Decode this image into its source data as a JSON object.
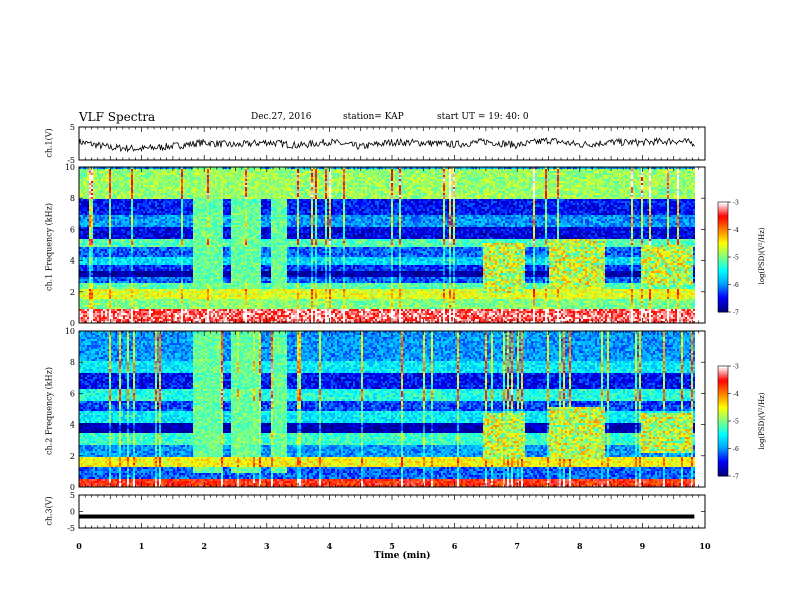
{
  "header": {
    "title": "VLF Spectra",
    "date": "Dec.27, 2016",
    "station": "station= KAP",
    "start": "start UT =   19: 40: 0"
  },
  "colors": {
    "colormap": [
      "#000080",
      "#0000ff",
      "#00a0ff",
      "#00ffff",
      "#80ff80",
      "#ffff00",
      "#ff8000",
      "#ff0000",
      "#ffffff"
    ],
    "trace": "#000000"
  },
  "chart_data": [
    {
      "type": "line",
      "panel": "ch1-waveform",
      "ylabel": "ch.1(V)",
      "ylim": [
        -5,
        5
      ],
      "yticks": [
        "5",
        "-5"
      ],
      "x": [
        0,
        0.5,
        1,
        1.5,
        2,
        2.5,
        3,
        3.5,
        4,
        4.5,
        5,
        5.5,
        6,
        6.5,
        7,
        7.5,
        8,
        8.5,
        9,
        9.5,
        9.83
      ],
      "values": [
        0.5,
        -1.2,
        -1.6,
        -0.8,
        0.3,
        -0.5,
        0.4,
        -0.6,
        0.5,
        -1.0,
        0.4,
        0.2,
        -0.3,
        0.6,
        -0.5,
        1.0,
        -0.4,
        0.4,
        0.3,
        0.8,
        0.2
      ]
    },
    {
      "type": "heatmap",
      "panel": "ch1-spectrogram",
      "ylabel": "ch.1 Frequency (kHz)",
      "ylim": [
        0,
        10
      ],
      "yticks": [
        "0",
        "2",
        "4",
        "6",
        "8",
        "10"
      ],
      "x_data_end": 9.83,
      "colorbar": {
        "label": "log(PSD)(V²/Hz)",
        "range": [
          -7,
          -3
        ],
        "ticks": [
          "-3",
          "-4",
          "-5",
          "-6",
          "-7"
        ]
      },
      "bands_khz": [
        {
          "from": 0,
          "to": 1.0,
          "level": -3.3
        },
        {
          "from": 1.0,
          "to": 1.6,
          "level": -5.0
        },
        {
          "from": 1.6,
          "to": 2.2,
          "level": -4.6
        },
        {
          "from": 2.2,
          "to": 2.6,
          "level": -5.2
        },
        {
          "from": 2.6,
          "to": 3.0,
          "level": -6.2
        },
        {
          "from": 3.0,
          "to": 3.4,
          "level": -6.9
        },
        {
          "from": 3.4,
          "to": 3.8,
          "level": -6.4
        },
        {
          "from": 3.8,
          "to": 4.3,
          "level": -5.7
        },
        {
          "from": 4.3,
          "to": 5.0,
          "level": -6.2
        },
        {
          "from": 5.0,
          "to": 5.5,
          "level": -5.2
        },
        {
          "from": 5.5,
          "to": 6.2,
          "level": -6.6
        },
        {
          "from": 6.2,
          "to": 7.0,
          "level": -6.0
        },
        {
          "from": 7.0,
          "to": 8.0,
          "level": -6.5
        },
        {
          "from": 8.0,
          "to": 10.0,
          "level": -4.9
        }
      ],
      "noisy_segments_min": [
        [
          1.8,
          2.3
        ],
        [
          2.4,
          2.9
        ],
        [
          3.05,
          3.3
        ]
      ],
      "chorus_segments_min": [
        {
          "from": 6.45,
          "to": 7.1,
          "fmin": 2.0,
          "fmax": 5.2
        },
        {
          "from": 7.5,
          "to": 8.4,
          "fmin": 2.2,
          "fmax": 5.4
        },
        {
          "from": 8.95,
          "to": 9.8,
          "fmin": 2.5,
          "fmax": 5.0
        }
      ]
    },
    {
      "type": "heatmap",
      "panel": "ch2-spectrogram",
      "ylabel": "ch.2 Frequency (kHz)",
      "ylim": [
        0,
        10
      ],
      "yticks": [
        "0",
        "2",
        "4",
        "6",
        "8",
        "10"
      ],
      "x_data_end": 9.83,
      "colorbar": {
        "label": "log(PSD)(V²/Hz)",
        "range": [
          -7,
          -3
        ],
        "ticks": [
          "-3",
          "-4",
          "-5",
          "-6",
          "-7"
        ]
      },
      "bands_khz": [
        {
          "from": 0,
          "to": 0.6,
          "level": -3.6
        },
        {
          "from": 0.6,
          "to": 1.4,
          "level": -6.2
        },
        {
          "from": 1.4,
          "to": 2.0,
          "level": -4.5
        },
        {
          "from": 2.0,
          "to": 2.8,
          "level": -6.0
        },
        {
          "from": 2.8,
          "to": 3.5,
          "level": -5.3
        },
        {
          "from": 3.5,
          "to": 4.2,
          "level": -6.8
        },
        {
          "from": 4.2,
          "to": 5.0,
          "level": -5.6
        },
        {
          "from": 5.0,
          "to": 5.6,
          "level": -6.3
        },
        {
          "from": 5.6,
          "to": 6.4,
          "level": -5.4
        },
        {
          "from": 6.4,
          "to": 7.4,
          "level": -6.5
        },
        {
          "from": 7.4,
          "to": 8.2,
          "level": -5.6
        },
        {
          "from": 8.2,
          "to": 10.0,
          "level": -6.0
        }
      ],
      "noisy_segments_min": [
        [
          1.8,
          2.3
        ],
        [
          2.4,
          2.9
        ],
        [
          3.05,
          3.3
        ]
      ],
      "chorus_segments_min": [
        {
          "from": 6.45,
          "to": 7.1,
          "fmin": 1.8,
          "fmax": 4.8
        },
        {
          "from": 7.5,
          "to": 8.4,
          "fmin": 1.8,
          "fmax": 5.2
        },
        {
          "from": 8.95,
          "to": 9.8,
          "fmin": 2.2,
          "fmax": 4.8
        }
      ]
    },
    {
      "type": "line",
      "panel": "ch3-waveform",
      "ylabel": "ch.3(V)",
      "ylim": [
        -5,
        5
      ],
      "yticks": [
        "5",
        "0",
        "-5"
      ],
      "x": [
        0,
        9.83
      ],
      "values": [
        -1.5,
        -1.5
      ]
    }
  ],
  "xaxis": {
    "label": "Time  (min)",
    "range": [
      0,
      10
    ],
    "ticks": [
      "0",
      "1",
      "2",
      "3",
      "4",
      "5",
      "6",
      "7",
      "8",
      "9",
      "10"
    ]
  }
}
